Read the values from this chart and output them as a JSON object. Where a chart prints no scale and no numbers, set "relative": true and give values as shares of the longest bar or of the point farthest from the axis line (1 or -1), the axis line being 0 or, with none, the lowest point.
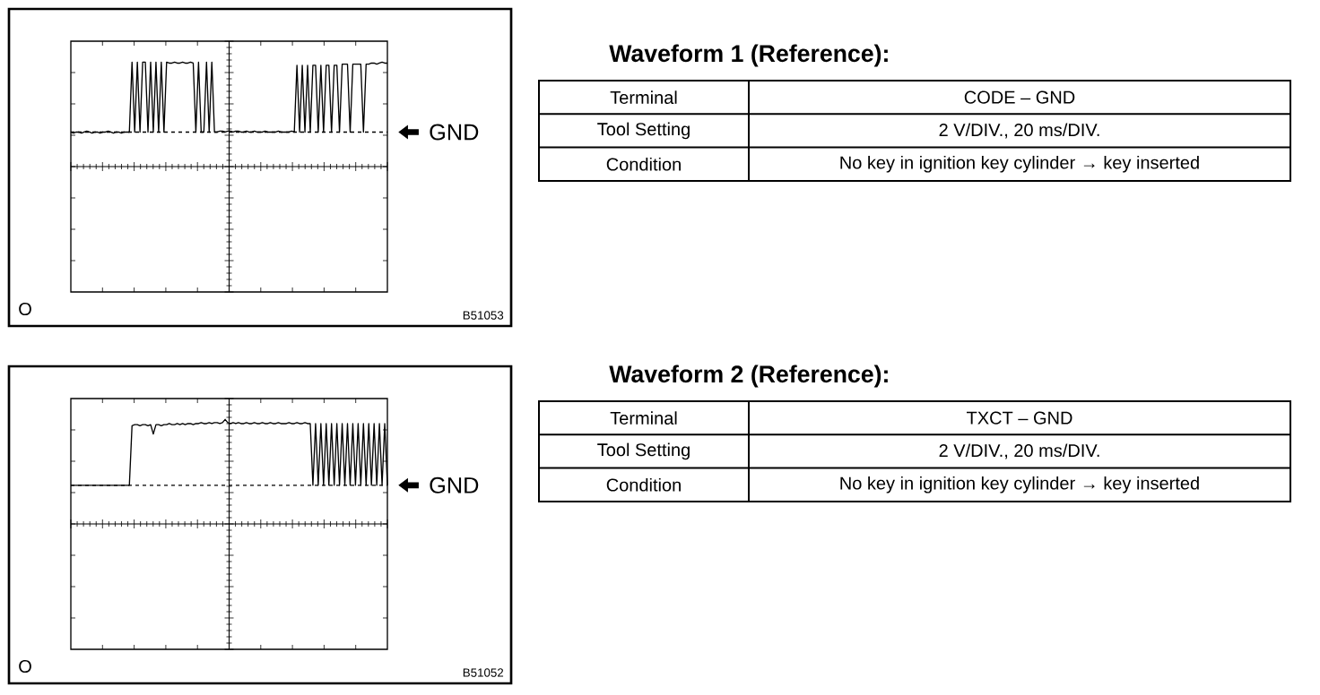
{
  "chart_data": [
    {
      "type": "line",
      "relative": true,
      "color": "#000000",
      "categories": [
        null,
        null,
        null,
        null,
        null,
        null,
        null,
        null,
        null,
        null,
        null,
        null,
        null,
        null,
        null,
        null,
        null,
        null,
        null,
        null,
        null,
        null,
        null,
        null,
        null,
        null,
        null,
        null,
        null,
        null,
        null,
        null,
        null,
        null,
        null,
        null,
        null,
        null,
        null,
        null,
        null,
        null,
        null,
        null,
        null,
        null,
        null,
        null,
        null,
        null,
        null,
        null,
        null,
        null,
        null,
        null,
        null,
        null,
        null,
        null,
        null,
        null,
        null,
        null,
        null,
        null,
        null,
        null,
        null,
        null,
        null,
        null,
        null,
        null,
        null,
        null,
        null,
        null,
        null,
        null,
        null,
        null,
        null,
        null,
        null,
        null,
        null,
        null,
        null,
        null,
        null,
        null,
        null,
        null,
        null,
        null,
        null,
        null,
        null,
        null,
        null,
        null,
        null,
        null,
        null,
        null,
        null,
        null,
        null,
        null,
        null,
        null,
        null,
        null,
        null,
        null,
        null,
        null,
        null,
        null
      ],
      "values": [
        0.33,
        0.32,
        0.33,
        0.33,
        0.32,
        0.33,
        0.34,
        0.33,
        0.32,
        0.33,
        0.33,
        0.32,
        0.33,
        0.33,
        0.34,
        0.33,
        0.32,
        0.33,
        0.33,
        0.32,
        0.33,
        0.33,
        0.33,
        1,
        0.33,
        1,
        0.33,
        1,
        1,
        0.33,
        1,
        0.33,
        1,
        0.33,
        1,
        0.33,
        1,
        0.99,
        0.99,
        1,
        0.99,
        0.99,
        1,
        0.99,
        0.99,
        1,
        0.99,
        0.33,
        1,
        0.33,
        0.33,
        1,
        0.33,
        1,
        0.33,
        0.33,
        0.34,
        0.34,
        0.33,
        0.34,
        0.34,
        0.33,
        0.34,
        0.34,
        0.33,
        0.33,
        0.34,
        0.33,
        0.33,
        0.34,
        0.33,
        0.33,
        0.33,
        0.34,
        0.33,
        0.33,
        0.33,
        0.33,
        0.34,
        0.33,
        0.33,
        0.33,
        0.33,
        0.34,
        0.33,
        0.97,
        0.33,
        0.97,
        0.33,
        0.97,
        0.33,
        0.97,
        0.97,
        0.33,
        0.97,
        0.33,
        0.97,
        0.97,
        0.33,
        0.97,
        0.97,
        0.33,
        0.98,
        0.98,
        0.98,
        0.33,
        0.98,
        0.98,
        0.98,
        0.98,
        0.33,
        0.98,
        0.98,
        0.99,
        0.99,
        0.98,
        0.99,
        1,
        0.99,
        0.99
      ],
      "ref_lines": [
        {
          "axis": "y",
          "value": 0.33,
          "label": "GND",
          "line_style": "dashed",
          "color": "#000000"
        }
      ],
      "annotations": [
        "Waveform 1 (Reference):",
        "O",
        "B51053",
        "Terminal",
        "CODE – GND",
        "Tool Setting",
        "2 V/DIV., 20 ms/DIV.",
        "Condition",
        "No key in ignition key cylinder → key inserted"
      ]
    },
    {
      "type": "line",
      "relative": true,
      "color": "#000000",
      "categories": [
        null,
        null,
        null,
        null,
        null,
        null,
        null,
        null,
        null,
        null,
        null,
        null,
        null,
        null,
        null,
        null,
        null,
        null,
        null,
        null,
        null,
        null,
        null,
        null,
        null,
        null,
        null,
        null,
        null,
        null,
        null,
        null,
        null,
        null,
        null,
        null,
        null,
        null,
        null,
        null,
        null,
        null,
        null,
        null,
        null,
        null,
        null,
        null,
        null,
        null,
        null,
        null,
        null,
        null,
        null,
        null,
        null,
        null,
        null,
        null,
        null,
        null,
        null,
        null,
        null,
        null,
        null,
        null,
        null,
        null,
        null,
        null,
        null,
        null,
        null,
        null,
        null,
        null,
        null,
        null,
        null,
        null,
        null,
        null,
        null,
        null,
        null,
        null,
        null,
        null,
        null,
        null,
        null,
        null,
        null,
        null,
        null,
        null,
        null,
        null,
        null,
        null,
        null,
        null,
        null,
        null,
        null,
        null,
        null,
        null,
        null,
        null,
        null,
        null,
        null,
        null,
        null,
        null,
        null,
        null
      ],
      "values": [
        0.37,
        0.37,
        0.37,
        0.37,
        0.37,
        0.37,
        0.37,
        0.37,
        0.37,
        0.37,
        0.37,
        0.37,
        0.37,
        0.37,
        0.37,
        0.37,
        0.37,
        0.37,
        0.37,
        0.37,
        0.37,
        0.37,
        0.37,
        0.94,
        0.95,
        0.95,
        0.94,
        0.95,
        0.95,
        0.94,
        0.95,
        0.86,
        0.95,
        0.95,
        0.94,
        0.95,
        0.95,
        0.96,
        0.95,
        0.95,
        0.96,
        0.95,
        0.96,
        0.95,
        0.96,
        0.96,
        0.95,
        0.96,
        0.96,
        0.97,
        0.96,
        0.96,
        0.97,
        0.96,
        0.97,
        0.97,
        0.96,
        0.97,
        1,
        0.97,
        0.96,
        0.97,
        0.96,
        0.97,
        0.96,
        0.96,
        0.97,
        0.96,
        0.96,
        0.97,
        0.96,
        0.96,
        0.97,
        0.96,
        0.96,
        0.97,
        0.96,
        0.96,
        0.97,
        0.96,
        0.96,
        0.96,
        0.97,
        0.96,
        0.96,
        0.97,
        0.96,
        0.96,
        0.97,
        0.96,
        0.96,
        0.37,
        0.96,
        0.37,
        0.96,
        0.37,
        0.96,
        0.37,
        0.96,
        0.37,
        0.96,
        0.37,
        0.96,
        0.37,
        0.96,
        0.37,
        0.96,
        0.37,
        0.96,
        0.37,
        0.96,
        0.37,
        0.96,
        0.37,
        0.96,
        0.37,
        0.96,
        0.37,
        0.96,
        0.37
      ],
      "ref_lines": [
        {
          "axis": "y",
          "value": 0.37,
          "label": "GND",
          "line_style": "dashed",
          "color": "#000000"
        }
      ],
      "annotations": [
        "Waveform 2 (Reference):",
        "O",
        "B51052",
        "Terminal",
        "TXCT – GND",
        "Tool Setting",
        "2 V/DIV., 20 ms/DIV.",
        "Condition",
        "No key in ignition key cylinder → key inserted"
      ]
    }
  ]
}
